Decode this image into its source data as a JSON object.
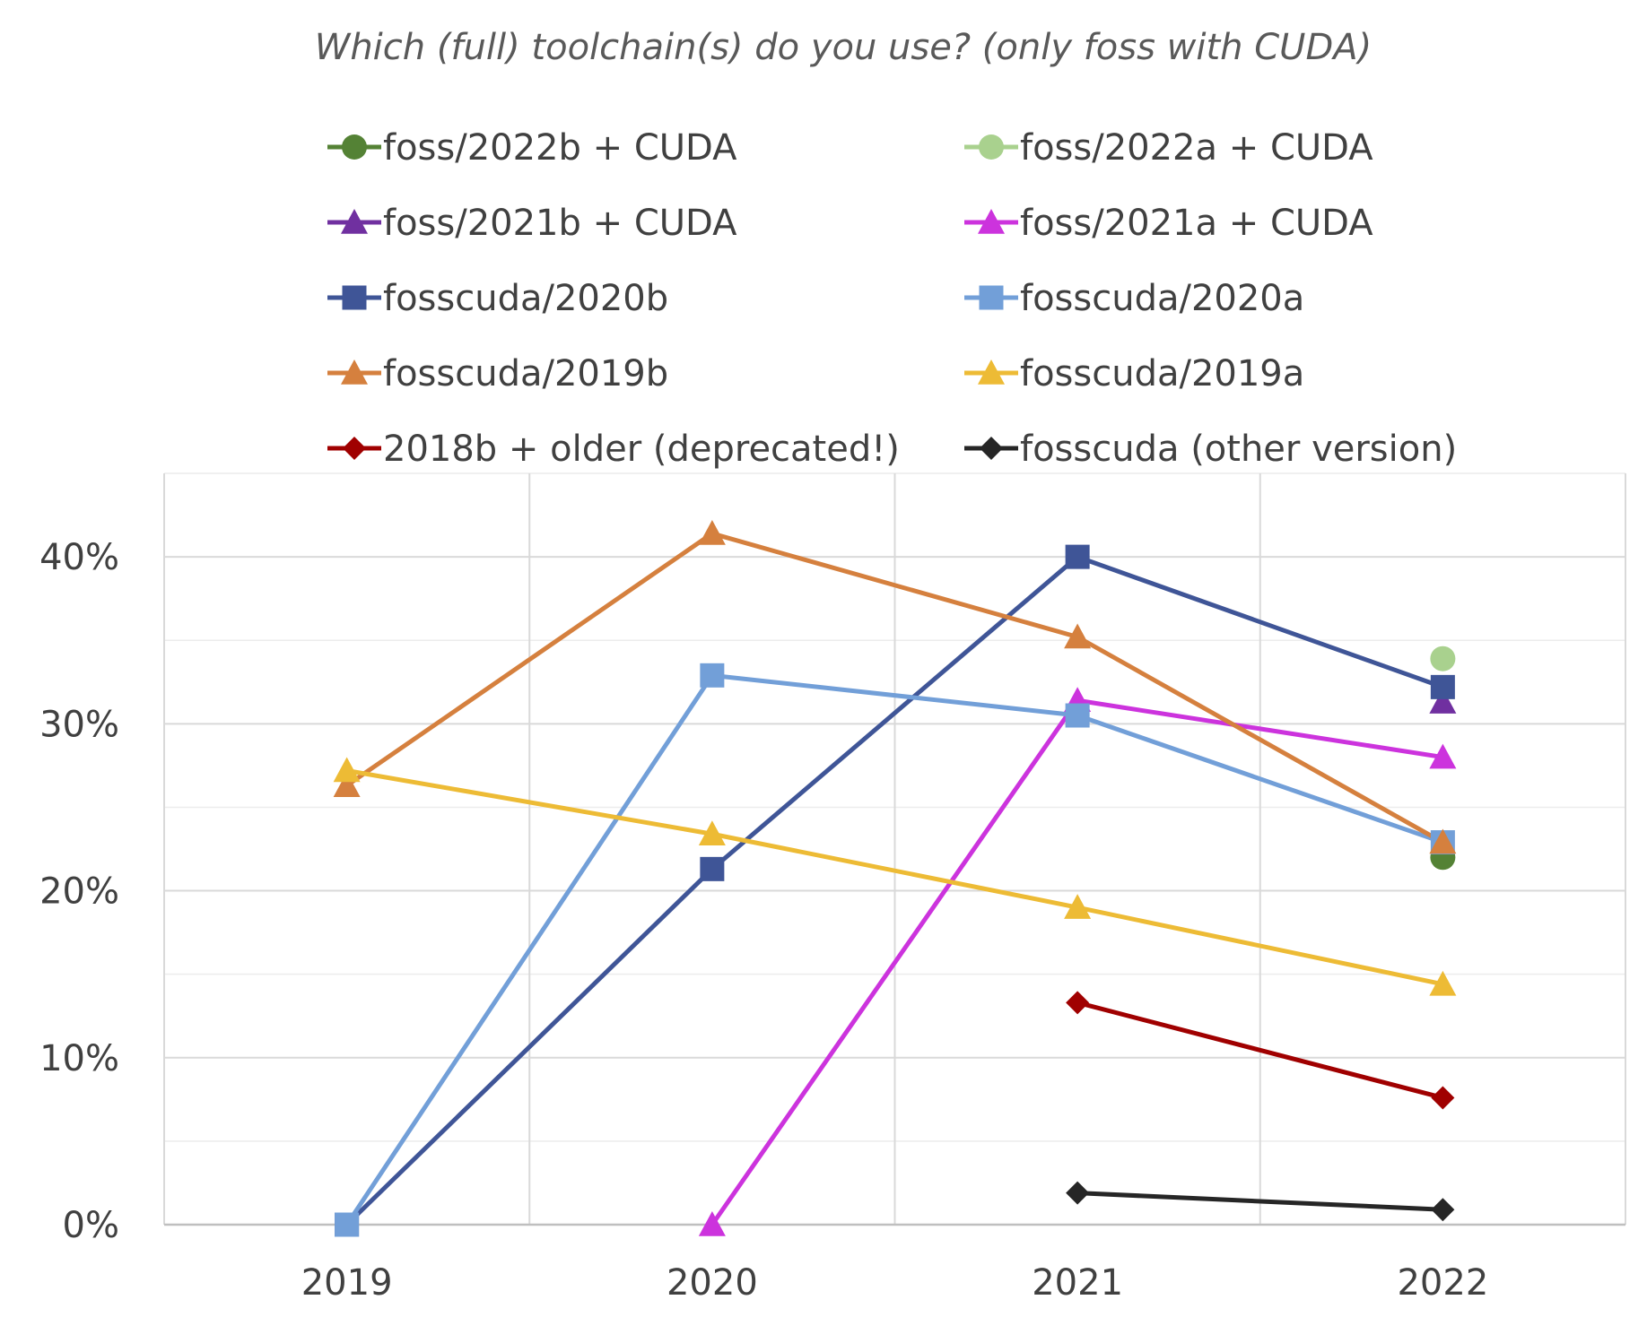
{
  "chart_data": {
    "type": "line",
    "title": "Which (full) toolchain(s) do you use? (only foss with CUDA)",
    "xlabel": "",
    "ylabel": "",
    "categories": [
      "2019",
      "2020",
      "2021",
      "2022"
    ],
    "ylim": [
      0,
      45
    ],
    "yticks": [
      0,
      10,
      20,
      30,
      40
    ],
    "ytick_labels": [
      "0%",
      "10%",
      "20%",
      "30%",
      "40%"
    ],
    "grid": true,
    "legend_position": "top",
    "series": [
      {
        "name": "foss/2022b + CUDA",
        "color": "#548235",
        "marker": "circle",
        "values": [
          null,
          null,
          null,
          22
        ]
      },
      {
        "name": "foss/2022a + CUDA",
        "color": "#A9D18E",
        "marker": "circle",
        "values": [
          null,
          null,
          null,
          33.9
        ]
      },
      {
        "name": "foss/2021b + CUDA",
        "color": "#7030A0",
        "marker": "triangle",
        "values": [
          null,
          null,
          null,
          31.3
        ]
      },
      {
        "name": "foss/2021a + CUDA",
        "color": "#CC33DD",
        "marker": "triangle",
        "values": [
          null,
          0,
          31.4,
          28
        ]
      },
      {
        "name": "fosscuda/2020b",
        "color": "#3F5597",
        "marker": "square",
        "values": [
          0,
          21.3,
          40,
          32.2
        ]
      },
      {
        "name": "fosscuda/2020a",
        "color": "#729FD8",
        "marker": "square",
        "values": [
          0,
          32.9,
          30.5,
          22.9
        ]
      },
      {
        "name": "fosscuda/2019b",
        "color": "#D5803E",
        "marker": "triangle",
        "values": [
          26.3,
          41.4,
          35.2,
          22.9
        ]
      },
      {
        "name": "fosscuda/2019a",
        "color": "#EDBB35",
        "marker": "triangle",
        "values": [
          27.2,
          23.4,
          19,
          14.4
        ]
      },
      {
        "name": "2018b + older (deprecated!)",
        "color": "#A00000",
        "marker": "diamond",
        "values": [
          null,
          null,
          13.3,
          7.6
        ]
      },
      {
        "name": "fosscuda (other version)",
        "color": "#262626",
        "marker": "diamond",
        "values": [
          null,
          null,
          1.9,
          0.9
        ]
      }
    ]
  }
}
